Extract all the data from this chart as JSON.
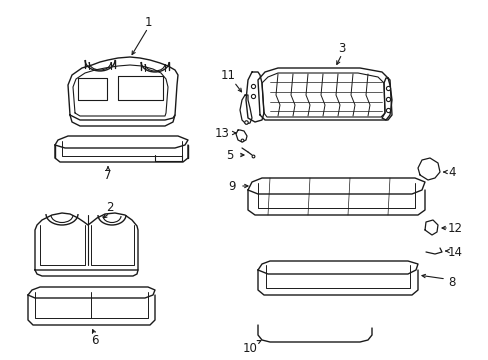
{
  "background_color": "#ffffff",
  "line_color": "#1a1a1a",
  "line_width": 1.0,
  "label_fontsize": 8.5,
  "fig_width": 4.89,
  "fig_height": 3.6,
  "dpi": 100
}
